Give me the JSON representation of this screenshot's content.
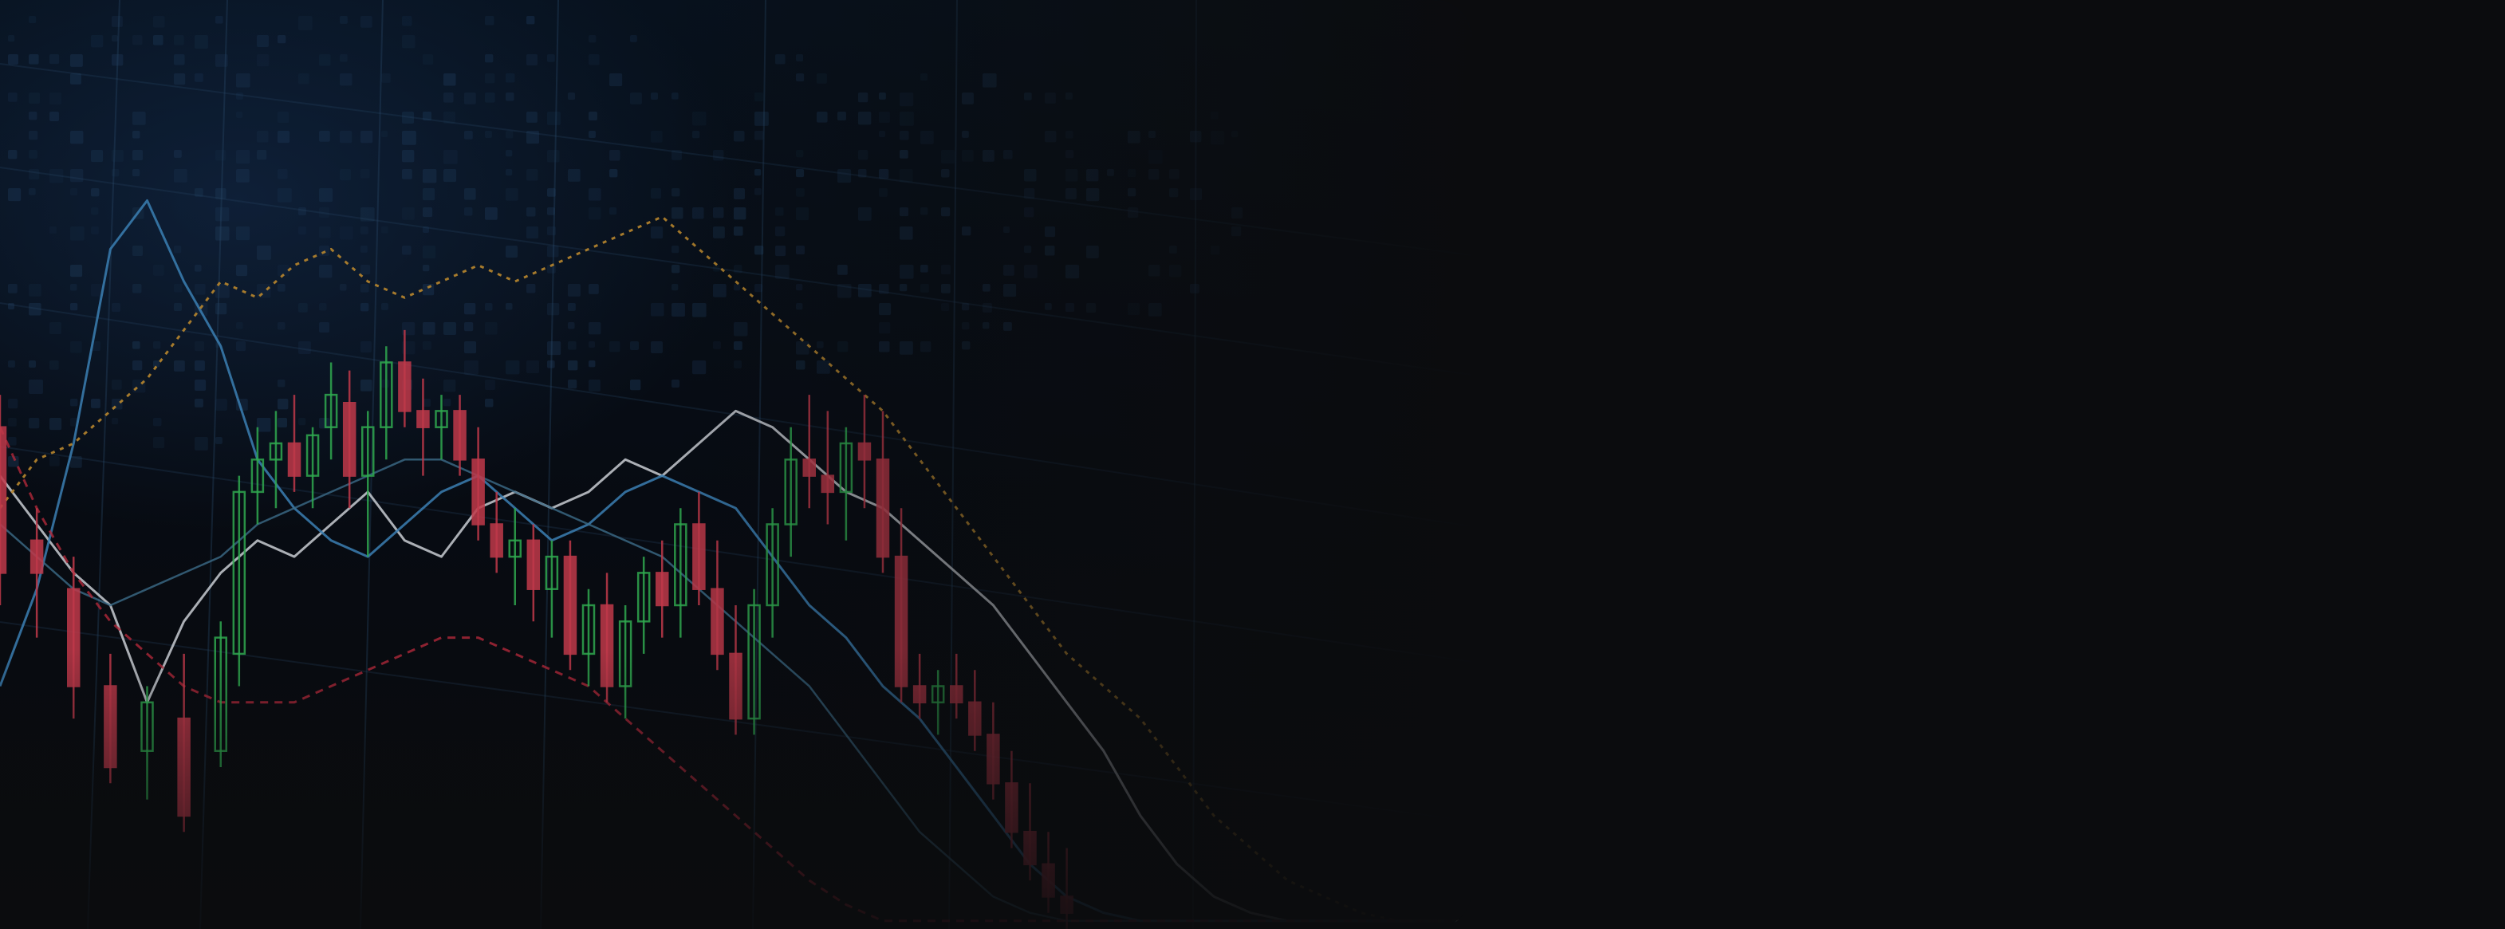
{
  "colors": {
    "background": "#0b0c0e",
    "grid": "#2a4a6a",
    "mosaic": "#1b3552",
    "bull": "#2fa84f",
    "bear": "#c0394a",
    "line_white": "#c8ccd2",
    "line_blue": "#3b7fb3",
    "line_teal": "#3c6b88",
    "line_orange_dotted": "#b8862e",
    "line_red_dashed": "#b0283a"
  },
  "chart_data": {
    "type": "line",
    "title": "",
    "xlabel": "",
    "ylabel": "",
    "grid": true,
    "x": [
      0,
      2,
      4,
      6,
      8,
      10,
      12,
      14,
      16,
      18,
      20,
      22,
      24,
      26,
      28,
      30,
      32,
      34,
      36,
      38,
      40,
      42,
      44,
      46,
      48,
      50,
      52,
      54,
      56,
      58,
      60,
      62,
      64,
      66,
      68,
      70,
      72,
      74,
      76,
      78,
      80
    ],
    "xlim": [
      0,
      80
    ],
    "ylim": [
      0,
      100
    ],
    "series": [
      {
        "kind": "candlestick",
        "style": "candle",
        "x": [
          0,
          2,
          4,
          6,
          8,
          10,
          12,
          13,
          14,
          15,
          16,
          17,
          18,
          19,
          20,
          21,
          22,
          23,
          24,
          25,
          26,
          27,
          28,
          29,
          30,
          31,
          32,
          33,
          34,
          35,
          36,
          37,
          38,
          39,
          40,
          41,
          42,
          43,
          44,
          45,
          46,
          47,
          48,
          49,
          50,
          51,
          52,
          53,
          54,
          55,
          56,
          57,
          58
        ],
        "ohlc": [
          [
            62,
            66,
            40,
            44
          ],
          [
            48,
            52,
            36,
            44
          ],
          [
            42,
            46,
            26,
            30
          ],
          [
            30,
            34,
            18,
            20
          ],
          [
            22,
            30,
            16,
            28
          ],
          [
            26,
            34,
            12,
            14
          ],
          [
            22,
            38,
            20,
            36
          ],
          [
            34,
            56,
            30,
            54
          ],
          [
            54,
            62,
            50,
            58
          ],
          [
            58,
            64,
            52,
            60
          ],
          [
            60,
            66,
            54,
            56
          ],
          [
            56,
            62,
            52,
            61
          ],
          [
            62,
            70,
            58,
            66
          ],
          [
            65,
            69,
            52,
            56
          ],
          [
            56,
            64,
            46,
            62
          ],
          [
            62,
            72,
            58,
            70
          ],
          [
            70,
            74,
            62,
            64
          ],
          [
            64,
            68,
            56,
            62
          ],
          [
            62,
            66,
            58,
            64
          ],
          [
            64,
            66,
            56,
            58
          ],
          [
            58,
            62,
            48,
            50
          ],
          [
            50,
            54,
            44,
            46
          ],
          [
            46,
            52,
            40,
            48
          ],
          [
            48,
            50,
            38,
            42
          ],
          [
            42,
            48,
            36,
            46
          ],
          [
            46,
            48,
            32,
            34
          ],
          [
            34,
            42,
            30,
            40
          ],
          [
            40,
            44,
            28,
            30
          ],
          [
            30,
            40,
            26,
            38
          ],
          [
            38,
            46,
            34,
            44
          ],
          [
            44,
            48,
            36,
            40
          ],
          [
            40,
            52,
            36,
            50
          ],
          [
            50,
            54,
            40,
            42
          ],
          [
            42,
            48,
            32,
            34
          ],
          [
            34,
            40,
            24,
            26
          ],
          [
            26,
            42,
            24,
            40
          ],
          [
            40,
            52,
            36,
            50
          ],
          [
            50,
            62,
            46,
            58
          ],
          [
            58,
            66,
            52,
            56
          ],
          [
            56,
            64,
            50,
            54
          ],
          [
            54,
            62,
            48,
            60
          ],
          [
            60,
            66,
            52,
            58
          ],
          [
            58,
            64,
            44,
            46
          ],
          [
            46,
            52,
            28,
            30
          ],
          [
            30,
            34,
            26,
            28
          ],
          [
            28,
            32,
            24,
            30
          ],
          [
            30,
            34,
            26,
            28
          ],
          [
            28,
            32,
            22,
            24
          ],
          [
            24,
            28,
            16,
            18
          ],
          [
            18,
            22,
            10,
            12
          ],
          [
            12,
            18,
            6,
            8
          ],
          [
            8,
            12,
            2,
            4
          ],
          [
            4,
            10,
            0,
            2
          ]
        ]
      },
      {
        "kind": "line",
        "style": "white",
        "values": [
          56,
          50,
          44,
          40,
          28,
          38,
          44,
          48,
          46,
          50,
          54,
          48,
          46,
          52,
          54,
          52,
          54,
          58,
          56,
          60,
          64,
          62,
          58,
          54,
          52,
          48,
          44,
          40,
          34,
          28,
          22,
          14,
          8,
          4,
          2,
          1,
          1,
          1,
          1,
          1,
          1
        ]
      },
      {
        "kind": "line",
        "style": "blue",
        "values": [
          30,
          42,
          60,
          84,
          90,
          80,
          72,
          58,
          52,
          48,
          46,
          50,
          54,
          56,
          52,
          48,
          50,
          54,
          56,
          54,
          52,
          46,
          40,
          36,
          30,
          26,
          20,
          14,
          8,
          4,
          2,
          1,
          1,
          1,
          1,
          1,
          1,
          1,
          1,
          1,
          1
        ]
      },
      {
        "kind": "line",
        "style": "teal",
        "values": [
          50,
          46,
          42,
          40,
          42,
          44,
          46,
          50,
          52,
          54,
          56,
          58,
          58,
          56,
          54,
          52,
          50,
          48,
          46,
          42,
          38,
          34,
          30,
          24,
          18,
          12,
          8,
          4,
          2,
          1,
          1,
          1,
          1,
          1,
          1,
          1,
          1,
          1,
          1,
          1,
          1
        ]
      },
      {
        "kind": "line",
        "style": "orange-dotted",
        "values": [
          52,
          58,
          60,
          64,
          68,
          74,
          80,
          78,
          82,
          84,
          80,
          78,
          80,
          82,
          80,
          82,
          84,
          86,
          88,
          84,
          80,
          76,
          72,
          68,
          64,
          58,
          52,
          46,
          40,
          34,
          30,
          26,
          20,
          14,
          10,
          6,
          4,
          2,
          1,
          1,
          1
        ]
      },
      {
        "kind": "line",
        "style": "red-dashed",
        "values": [
          62,
          52,
          44,
          38,
          34,
          30,
          28,
          28,
          28,
          30,
          32,
          34,
          36,
          36,
          34,
          32,
          30,
          26,
          22,
          18,
          14,
          10,
          6,
          3,
          1,
          1,
          1,
          1,
          1,
          1,
          1,
          1,
          1,
          1,
          1,
          1,
          1,
          1,
          1,
          1,
          1
        ]
      }
    ]
  }
}
